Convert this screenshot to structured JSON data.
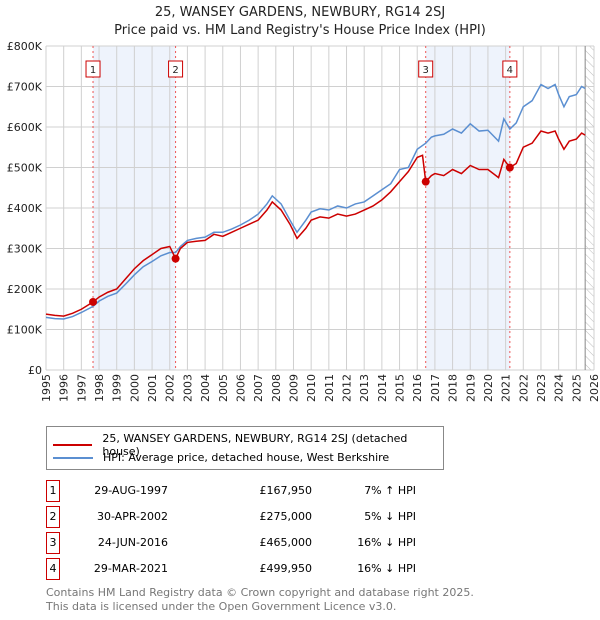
{
  "title": "25, WANSEY GARDENS, NEWBURY, RG14 2SJ",
  "subtitle": "Price paid vs. HM Land Registry's House Price Index (HPI)",
  "chart_data": {
    "type": "line",
    "xlim": [
      1995,
      2026
    ],
    "ylim": [
      0,
      800000
    ],
    "yticks": [
      {
        "v": 0,
        "l": "£0"
      },
      {
        "v": 100000,
        "l": "£100K"
      },
      {
        "v": 200000,
        "l": "£200K"
      },
      {
        "v": 300000,
        "l": "£300K"
      },
      {
        "v": 400000,
        "l": "£400K"
      },
      {
        "v": 500000,
        "l": "£500K"
      },
      {
        "v": 600000,
        "l": "£600K"
      },
      {
        "v": 700000,
        "l": "£700K"
      },
      {
        "v": 800000,
        "l": "£800K"
      }
    ],
    "xticks": [
      1995,
      1996,
      1997,
      1998,
      1999,
      2000,
      2001,
      2002,
      2003,
      2004,
      2005,
      2006,
      2007,
      2008,
      2009,
      2010,
      2011,
      2012,
      2013,
      2014,
      2015,
      2016,
      2017,
      2018,
      2019,
      2020,
      2021,
      2022,
      2023,
      2024,
      2025,
      2026
    ],
    "series": [
      {
        "name": "25, WANSEY GARDENS, NEWBURY, RG14 2SJ (detached house)",
        "color": "#cc0000",
        "points": [
          [
            1995,
            138000
          ],
          [
            1995.5,
            135000
          ],
          [
            1996,
            133000
          ],
          [
            1996.5,
            140000
          ],
          [
            1997,
            150000
          ],
          [
            1997.66,
            167950
          ],
          [
            1998,
            180000
          ],
          [
            1998.5,
            192000
          ],
          [
            1999,
            200000
          ],
          [
            1999.5,
            225000
          ],
          [
            2000,
            250000
          ],
          [
            2000.5,
            270000
          ],
          [
            2001,
            285000
          ],
          [
            2001.5,
            300000
          ],
          [
            2002,
            305000
          ],
          [
            2002.33,
            275000
          ],
          [
            2002.6,
            300000
          ],
          [
            2003,
            315000
          ],
          [
            2003.5,
            318000
          ],
          [
            2004,
            320000
          ],
          [
            2004.5,
            335000
          ],
          [
            2005,
            330000
          ],
          [
            2005.5,
            340000
          ],
          [
            2006,
            350000
          ],
          [
            2006.5,
            360000
          ],
          [
            2007,
            370000
          ],
          [
            2007.5,
            395000
          ],
          [
            2007.8,
            415000
          ],
          [
            2008.3,
            395000
          ],
          [
            2008.8,
            360000
          ],
          [
            2009.2,
            325000
          ],
          [
            2009.7,
            350000
          ],
          [
            2010,
            370000
          ],
          [
            2010.5,
            378000
          ],
          [
            2011,
            375000
          ],
          [
            2011.5,
            385000
          ],
          [
            2012,
            380000
          ],
          [
            2012.5,
            385000
          ],
          [
            2013,
            395000
          ],
          [
            2013.5,
            405000
          ],
          [
            2014,
            420000
          ],
          [
            2014.5,
            440000
          ],
          [
            2015,
            465000
          ],
          [
            2015.5,
            490000
          ],
          [
            2016,
            525000
          ],
          [
            2016.3,
            530000
          ],
          [
            2016.48,
            465000
          ],
          [
            2016.8,
            480000
          ],
          [
            2017,
            485000
          ],
          [
            2017.5,
            480000
          ],
          [
            2018,
            495000
          ],
          [
            2018.5,
            485000
          ],
          [
            2019,
            505000
          ],
          [
            2019.5,
            495000
          ],
          [
            2020,
            495000
          ],
          [
            2020.6,
            475000
          ],
          [
            2020.9,
            520000
          ],
          [
            2021.24,
            499950
          ],
          [
            2021.6,
            510000
          ],
          [
            2022,
            550000
          ],
          [
            2022.5,
            560000
          ],
          [
            2023,
            590000
          ],
          [
            2023.4,
            585000
          ],
          [
            2023.8,
            590000
          ],
          [
            2024,
            570000
          ],
          [
            2024.3,
            545000
          ],
          [
            2024.6,
            565000
          ],
          [
            2025,
            570000
          ],
          [
            2025.3,
            585000
          ],
          [
            2025.5,
            580000
          ]
        ]
      },
      {
        "name": "HPI: Average price, detached house, West Berkshire",
        "color": "#5b8fd1",
        "points": [
          [
            1995,
            130000
          ],
          [
            1995.5,
            127000
          ],
          [
            1996,
            126000
          ],
          [
            1996.5,
            132000
          ],
          [
            1997,
            142000
          ],
          [
            1997.66,
            157000
          ],
          [
            1998,
            170000
          ],
          [
            1998.5,
            182000
          ],
          [
            1999,
            190000
          ],
          [
            1999.5,
            212000
          ],
          [
            2000,
            235000
          ],
          [
            2000.5,
            255000
          ],
          [
            2001,
            268000
          ],
          [
            2001.5,
            282000
          ],
          [
            2002,
            290000
          ],
          [
            2002.33,
            290000
          ],
          [
            2002.6,
            305000
          ],
          [
            2003,
            320000
          ],
          [
            2003.5,
            325000
          ],
          [
            2004,
            328000
          ],
          [
            2004.5,
            340000
          ],
          [
            2005,
            340000
          ],
          [
            2005.5,
            348000
          ],
          [
            2006,
            358000
          ],
          [
            2006.5,
            370000
          ],
          [
            2007,
            385000
          ],
          [
            2007.5,
            410000
          ],
          [
            2007.8,
            430000
          ],
          [
            2008.3,
            410000
          ],
          [
            2008.8,
            370000
          ],
          [
            2009.2,
            340000
          ],
          [
            2009.7,
            370000
          ],
          [
            2010,
            390000
          ],
          [
            2010.5,
            398000
          ],
          [
            2011,
            395000
          ],
          [
            2011.5,
            405000
          ],
          [
            2012,
            400000
          ],
          [
            2012.5,
            410000
          ],
          [
            2013,
            415000
          ],
          [
            2013.5,
            430000
          ],
          [
            2014,
            445000
          ],
          [
            2014.5,
            460000
          ],
          [
            2015,
            495000
          ],
          [
            2015.5,
            500000
          ],
          [
            2016,
            545000
          ],
          [
            2016.48,
            560000
          ],
          [
            2016.8,
            575000
          ],
          [
            2017,
            578000
          ],
          [
            2017.5,
            582000
          ],
          [
            2018,
            595000
          ],
          [
            2018.5,
            585000
          ],
          [
            2019,
            608000
          ],
          [
            2019.5,
            590000
          ],
          [
            2020,
            592000
          ],
          [
            2020.6,
            565000
          ],
          [
            2020.9,
            620000
          ],
          [
            2021.24,
            595000
          ],
          [
            2021.6,
            610000
          ],
          [
            2022,
            650000
          ],
          [
            2022.5,
            665000
          ],
          [
            2023,
            705000
          ],
          [
            2023.4,
            695000
          ],
          [
            2023.8,
            705000
          ],
          [
            2024,
            680000
          ],
          [
            2024.3,
            650000
          ],
          [
            2024.6,
            675000
          ],
          [
            2025,
            680000
          ],
          [
            2025.3,
            700000
          ],
          [
            2025.5,
            695000
          ]
        ]
      }
    ],
    "sales": [
      {
        "n": "1",
        "date": "29-AUG-1997",
        "x": 1997.66,
        "price": 167950,
        "price_label": "£167,950",
        "hpi": "7% ↑ HPI"
      },
      {
        "n": "2",
        "date": "30-APR-2002",
        "x": 2002.33,
        "price": 275000,
        "price_label": "£275,000",
        "hpi": "5% ↓ HPI"
      },
      {
        "n": "3",
        "date": "24-JUN-2016",
        "x": 2016.48,
        "price": 465000,
        "price_label": "£465,000",
        "hpi": "16% ↓ HPI"
      },
      {
        "n": "4",
        "date": "29-MAR-2021",
        "x": 2021.24,
        "price": 499950,
        "price_label": "£499,950",
        "hpi": "16% ↓ HPI"
      }
    ],
    "shaded": [
      [
        1997.66,
        2002.33
      ],
      [
        2016.48,
        2021.24
      ]
    ],
    "future_from": 2025.5
  },
  "legend": {
    "red": "25, WANSEY GARDENS, NEWBURY, RG14 2SJ (detached house)",
    "blue": "HPI: Average price, detached house, West Berkshire"
  },
  "footer": {
    "line1": "Contains HM Land Registry data © Crown copyright and database right 2025.",
    "line2": "This data is licensed under the Open Government Licence v3.0."
  }
}
